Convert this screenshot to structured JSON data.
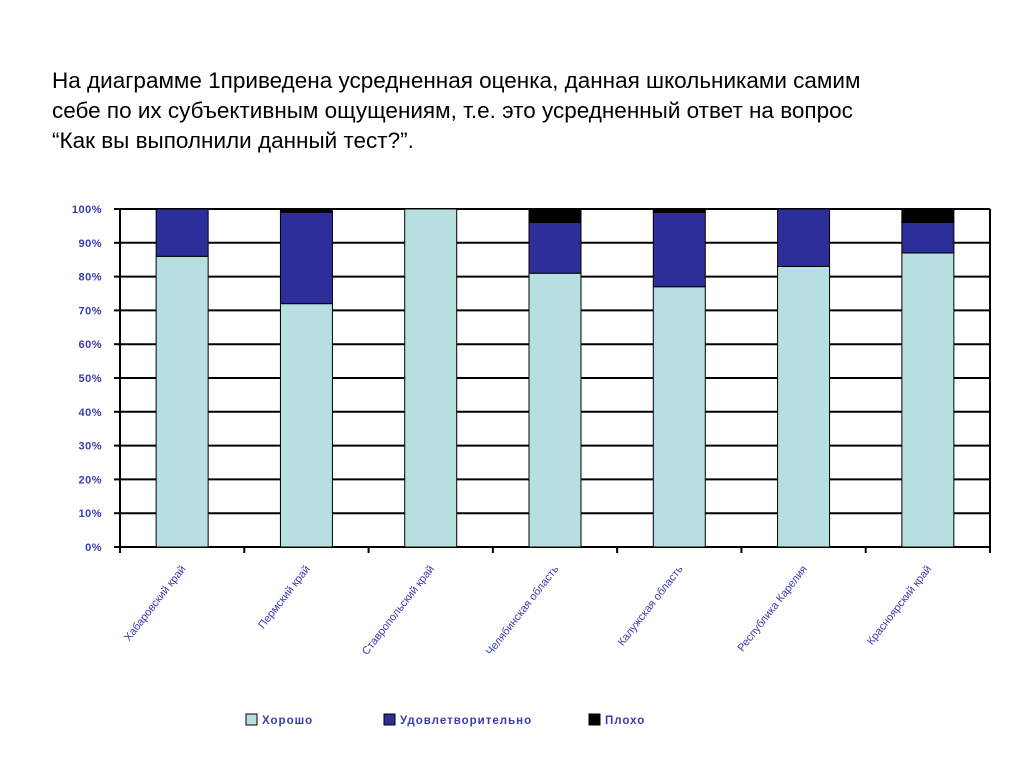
{
  "intro": {
    "lines": [
      "На диаграмме 1приведена усредненная оценка, данная школьниками самим",
      "себе по их субъективным ощущениям, т.е. это усредненный ответ на вопрос",
      "“Как вы выполнили данный тест?”."
    ]
  },
  "colors": {
    "good": "#b8dfe0",
    "satisfactory": "#2e2e9a",
    "bad": "#000000",
    "axis_text": "#3b3bb0",
    "grid": "#000000"
  },
  "chart_data": {
    "type": "bar",
    "stacked": true,
    "categories": [
      "Хабаровский край",
      "Пермский край",
      "Ставропольский край",
      "Челябинская область",
      "Калужская область",
      "Республика Карелия",
      "Красноярский край"
    ],
    "series": [
      {
        "name": "Хорошо",
        "color": "#b8dfe0",
        "values": [
          86,
          72,
          100,
          81,
          77,
          83,
          87
        ]
      },
      {
        "name": "Удовлетворительно",
        "color": "#2e2e9a",
        "values": [
          14,
          27,
          0,
          15,
          22,
          17,
          9
        ]
      },
      {
        "name": "Плохо",
        "color": "#000000",
        "values": [
          0,
          1,
          0,
          4,
          1,
          0,
          4
        ]
      }
    ],
    "y_ticks": [
      "0%",
      "10%",
      "20%",
      "30%",
      "40%",
      "50%",
      "60%",
      "70%",
      "80%",
      "90%",
      "100%"
    ],
    "ylim": [
      0,
      100
    ],
    "grid": true,
    "legend_position": "bottom"
  }
}
